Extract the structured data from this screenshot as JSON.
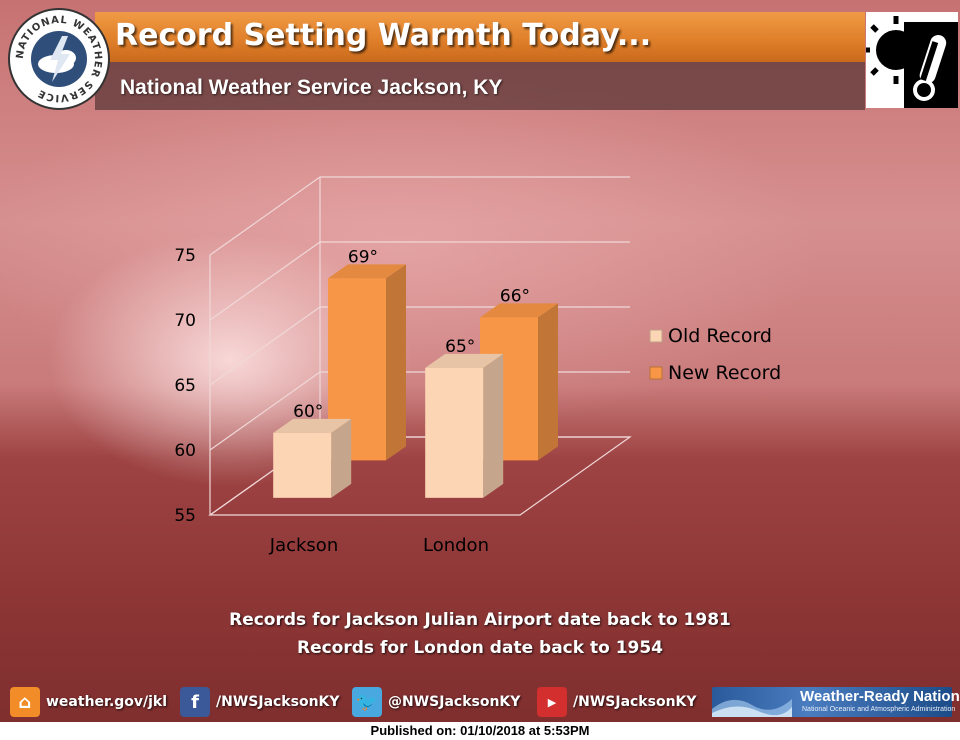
{
  "header": {
    "title": "Record Setting Warmth Today...",
    "subtitle": "National Weather Service Jackson, KY"
  },
  "logo": {
    "text": "NATIONAL WEATHER SERVICE",
    "icon": "nws-logo-icon"
  },
  "corner_icon": "sun-thermometer-icon",
  "chart_data": {
    "type": "bar",
    "categories": [
      "Jackson",
      "London"
    ],
    "series": [
      {
        "name": "Old Record",
        "values": [
          60,
          65
        ],
        "color": "#fcd5b4"
      },
      {
        "name": "New Record",
        "values": [
          69,
          66
        ],
        "color": "#f79646"
      }
    ],
    "data_labels": {
      "Old Record": [
        "60°",
        "65°"
      ],
      "New Record": [
        "69°",
        "66°"
      ]
    },
    "yticks": [
      55,
      60,
      65,
      70,
      75
    ],
    "ylim": [
      55,
      75
    ],
    "title": "",
    "xlabel": "",
    "ylabel": "",
    "grid": true,
    "legend_position": "right",
    "three_d": true
  },
  "notes": [
    "Records for Jackson Julian Airport date back to 1981",
    "Records for London date back to 1954"
  ],
  "footer": {
    "links": [
      {
        "icon": "home-icon",
        "text": "weather.gov/jkl",
        "color": "#f28c28"
      },
      {
        "icon": "facebook-icon",
        "text": "/NWSJacksonKY",
        "color": "#3b5998"
      },
      {
        "icon": "twitter-icon",
        "text": "@NWSJacksonKY",
        "color": "#4aa8e0"
      },
      {
        "icon": "youtube-icon",
        "text": "/NWSJacksonKY",
        "color": "#d32f2f"
      }
    ],
    "wrn": {
      "name": "Weather-Ready Nation",
      "sub": "National Oceanic and Atmospheric Administration"
    },
    "published": "Published on: 01/10/2018 at 5:53PM"
  }
}
